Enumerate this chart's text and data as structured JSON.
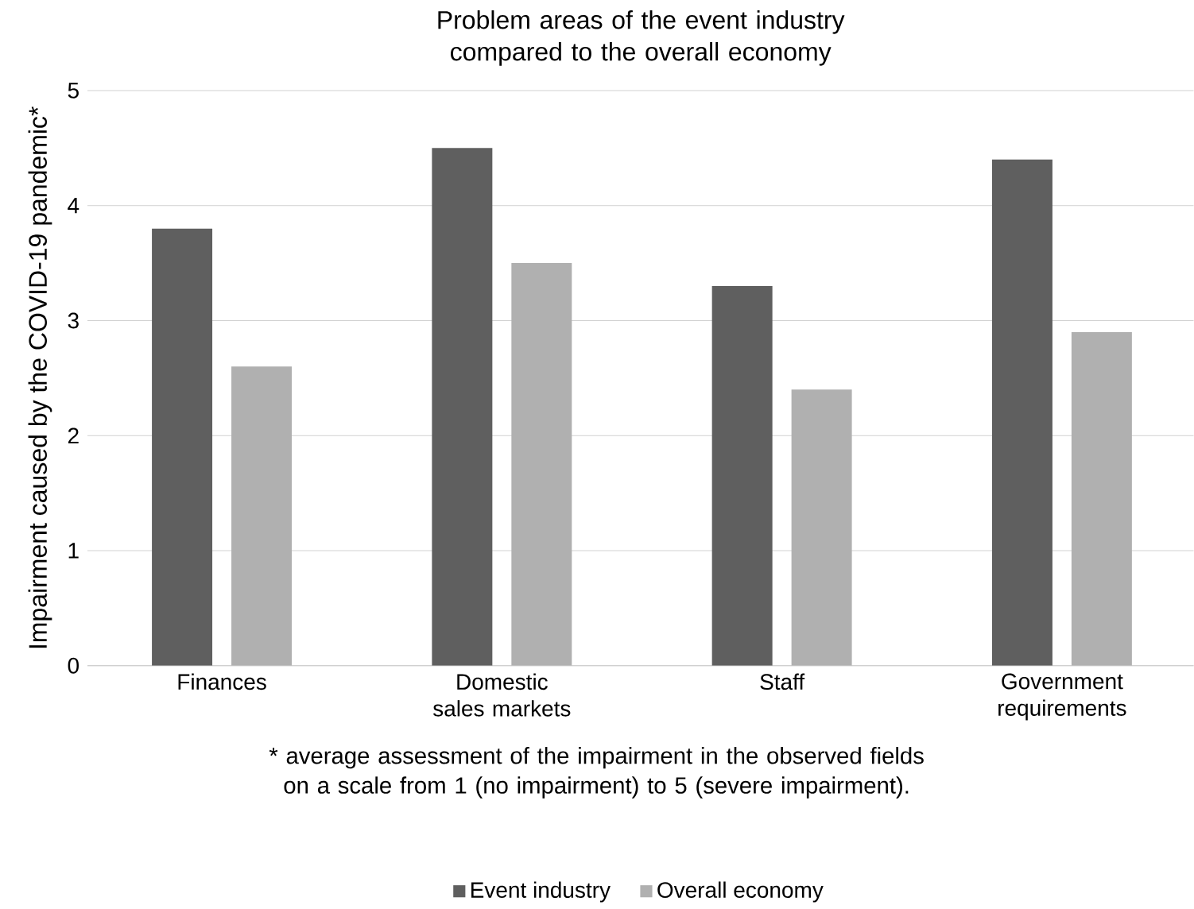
{
  "chart_data": {
    "type": "bar",
    "title": "Problem areas of the event industry compared to the overall economy",
    "ylabel": "Impairment caused by the COVID-19 pandemic*",
    "categories": [
      "Finances",
      "Domestic sales markets",
      "Staff",
      "Government requirements"
    ],
    "series": [
      {
        "name": "Event industry",
        "color": "#5f5f5f",
        "values": [
          3.8,
          4.5,
          3.3,
          4.4
        ]
      },
      {
        "name": "Overall economy",
        "color": "#b0b0b0",
        "values": [
          2.6,
          3.5,
          2.4,
          2.9
        ]
      }
    ],
    "ylim": [
      0,
      5
    ],
    "yticks": [
      0,
      1,
      2,
      3,
      4,
      5
    ],
    "grid": "y",
    "legend": "bottom",
    "annotations": [
      "* average assessment of the impairment in the observed fields on a scale from 1 (no impairment) to 5 (severe impairment)."
    ]
  }
}
